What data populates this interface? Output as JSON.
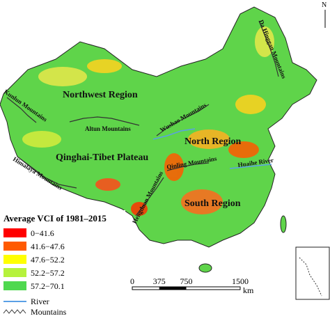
{
  "north": "N",
  "regions": [
    "Northwest Region",
    "North Region",
    "South Region",
    "Qinghai-Tibet Plateau"
  ],
  "mountains": [
    "Kunlun Mountains",
    "Altun Mountains",
    "Wushao Mountains",
    "Da Hinggan Mountains",
    "Qinling Mountains",
    "Himalaya Mountains",
    "Hengduan Mountains"
  ],
  "rivers": [
    "Huaihe River"
  ],
  "legend": {
    "title": "Average VCI of 1981–2015",
    "classes": [
      {
        "label": "0−41.6",
        "color": "#ff0000"
      },
      {
        "label": "41.6−47.6",
        "color": "#ff5a00"
      },
      {
        "label": "47.6−52.2",
        "color": "#ffff00"
      },
      {
        "label": "52.2−57.2",
        "color": "#b6f23c"
      },
      {
        "label": "57.2−70.1",
        "color": "#4fd84f"
      }
    ],
    "river": "River",
    "mountains": "Mountains"
  },
  "scale_bar": {
    "ticks": [
      "0",
      "375",
      "750",
      "1500"
    ],
    "unit": "km"
  }
}
